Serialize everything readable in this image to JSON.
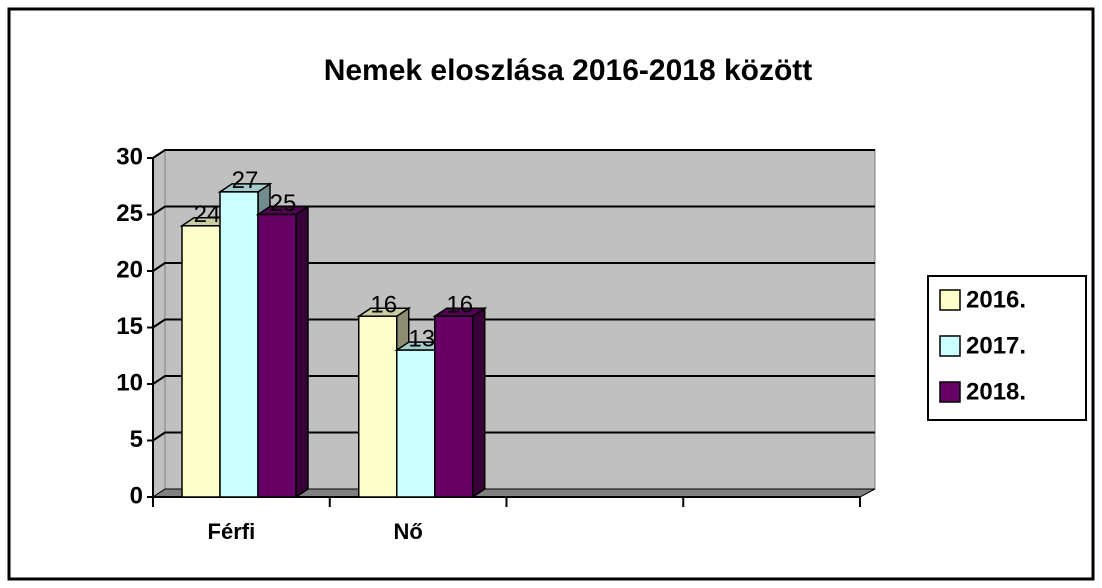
{
  "chart_data": {
    "type": "bar3d",
    "title": "Nemek eloszlása 2016-2018 között",
    "categories": [
      "Férfi",
      "Nő",
      null,
      null
    ],
    "series": [
      {
        "name": "2016.",
        "color": "#ffffcc",
        "values": [
          24,
          16,
          null,
          null
        ]
      },
      {
        "name": "2017.",
        "color": "#ccffff",
        "values": [
          27,
          13,
          null,
          null
        ]
      },
      {
        "name": "2018.",
        "color": "#660066",
        "values": [
          25,
          16,
          null,
          null
        ]
      }
    ],
    "ylim": [
      0,
      30
    ],
    "yticks": [
      0,
      5,
      10,
      15,
      20,
      25,
      30
    ],
    "grid": true,
    "legend": "right"
  }
}
